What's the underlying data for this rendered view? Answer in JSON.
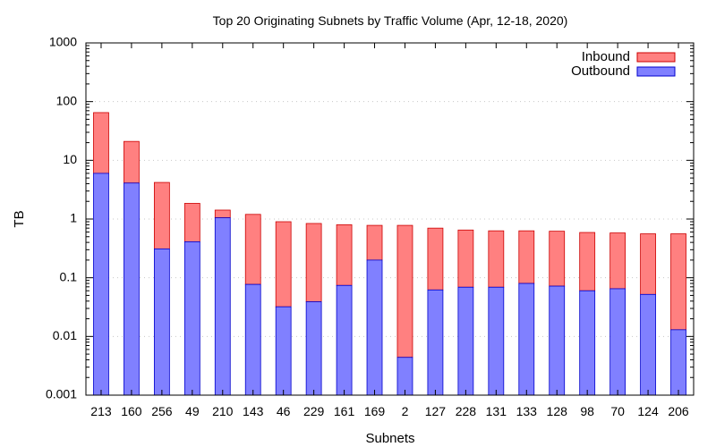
{
  "chart_data": {
    "type": "bar",
    "stacked": true,
    "title": "Top 20 Originating Subnets by Traffic Volume (Apr, 12-18, 2020)",
    "xlabel": "Subnets",
    "ylabel": "TB",
    "yscale": "log",
    "ylim": [
      0.001,
      1000
    ],
    "yticks": [
      "0.001",
      "0.01",
      "0.1",
      "1",
      "10",
      "100",
      "1000"
    ],
    "grid": "horizontal-dotted",
    "legend_position": "top-right",
    "categories": [
      "213",
      "160",
      "256",
      "49",
      "210",
      "143",
      "46",
      "229",
      "161",
      "169",
      "2",
      "127",
      "228",
      "131",
      "133",
      "128",
      "98",
      "70",
      "124",
      "206"
    ],
    "series": [
      {
        "name": "Outbound",
        "color": "#8080ff",
        "edge": "#0000cc",
        "values": [
          6.0,
          4.1,
          0.31,
          0.41,
          1.05,
          0.077,
          0.032,
          0.039,
          0.074,
          0.2,
          0.0044,
          0.062,
          0.069,
          0.069,
          0.08,
          0.072,
          0.06,
          0.065,
          0.052,
          0.013
        ]
      },
      {
        "name": "Inbound",
        "color": "#ff8080",
        "edge": "#cc0000",
        "values": [
          59.0,
          16.9,
          3.89,
          1.44,
          0.37,
          1.123,
          0.868,
          0.801,
          0.726,
          0.58,
          0.7756,
          0.638,
          0.581,
          0.561,
          0.55,
          0.548,
          0.53,
          0.515,
          0.508,
          0.547
        ]
      }
    ],
    "legend_order": [
      "Inbound",
      "Outbound"
    ]
  }
}
